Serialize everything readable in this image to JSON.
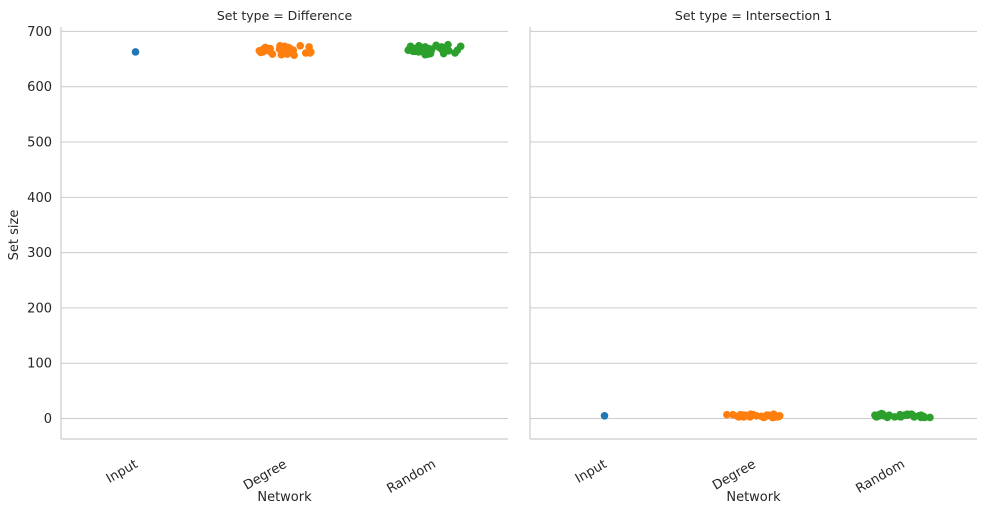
{
  "figure": {
    "ylabel": "Set size",
    "xlabel": "Network"
  },
  "chart_data": [
    {
      "type": "scatter",
      "subtype": "strip",
      "title": "Set type = Difference",
      "xlabel": "Network",
      "ylabel": "Set size",
      "categories": [
        "Input",
        "Degree",
        "Random"
      ],
      "yticks": [
        0,
        100,
        200,
        300,
        400,
        500,
        600,
        700
      ],
      "ylim": [
        -37,
        708
      ],
      "grid": "horizontal",
      "series": [
        {
          "category": "Input",
          "color": "#1f77b4",
          "values": [
            663
          ]
        },
        {
          "category": "Degree",
          "color": "#ff7f0e",
          "values": [
            667,
            671,
            663,
            669,
            658,
            672,
            665,
            661,
            670,
            668,
            659,
            674,
            666,
            662,
            673,
            664,
            657,
            671,
            667,
            660,
            669,
            665,
            672,
            663,
            668,
            670,
            661,
            666,
            674,
            659
          ]
        },
        {
          "category": "Random",
          "color": "#2ca02c",
          "values": [
            668,
            671,
            664,
            673,
            660,
            667,
            675,
            662,
            669,
            665,
            672,
            658,
            670,
            666,
            674,
            661,
            668,
            663,
            671,
            659,
            676,
            667,
            664,
            670,
            662,
            673,
            666,
            669,
            660,
            672
          ]
        }
      ]
    },
    {
      "type": "scatter",
      "subtype": "strip",
      "title": "Set type = Intersection 1",
      "xlabel": "Network",
      "ylabel": "",
      "categories": [
        "Input",
        "Degree",
        "Random"
      ],
      "yticks": [
        0,
        100,
        200,
        300,
        400,
        500,
        600,
        700
      ],
      "ylim": [
        -37,
        708
      ],
      "grid": "horizontal",
      "series": [
        {
          "category": "Input",
          "color": "#1f77b4",
          "values": [
            5
          ]
        },
        {
          "category": "Degree",
          "color": "#ff7f0e",
          "values": [
            4,
            6,
            3,
            7,
            5,
            2,
            8,
            4,
            6,
            3,
            5,
            7,
            4,
            6,
            2,
            5,
            3,
            8,
            6,
            4,
            5,
            7,
            3,
            6,
            4,
            5,
            2,
            6,
            7,
            4
          ]
        },
        {
          "category": "Random",
          "color": "#2ca02c",
          "values": [
            6,
            3,
            8,
            4,
            5,
            2,
            7,
            4,
            6,
            3,
            9,
            5,
            2,
            6,
            4,
            7,
            3,
            5,
            8,
            4,
            2,
            6,
            5,
            3,
            7,
            4,
            6,
            2,
            5,
            8
          ]
        }
      ]
    }
  ]
}
